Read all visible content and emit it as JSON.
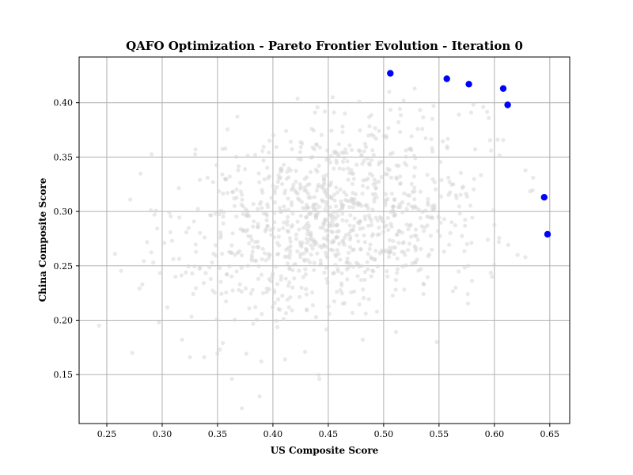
{
  "chart_data": {
    "type": "scatter",
    "title": "QAFO Optimization - Pareto Frontier Evolution - Iteration 0",
    "xlabel": "US Composite Score",
    "ylabel": "China Composite Score",
    "xlim": [
      0.225,
      0.668
    ],
    "ylim": [
      0.105,
      0.442
    ],
    "x_ticks": [
      0.25,
      0.3,
      0.35,
      0.4,
      0.45,
      0.5,
      0.55,
      0.6,
      0.65
    ],
    "x_tick_labels": [
      "0.25",
      "0.30",
      "0.35",
      "0.40",
      "0.45",
      "0.50",
      "0.55",
      "0.60",
      "0.65"
    ],
    "y_ticks": [
      0.15,
      0.2,
      0.25,
      0.3,
      0.35,
      0.4
    ],
    "y_tick_labels": [
      "0.15",
      "0.20",
      "0.25",
      "0.30",
      "0.35",
      "0.40"
    ],
    "grid": true,
    "colors": {
      "population": "#d3d3d3",
      "pareto": "#0000ff"
    },
    "population_cloud": {
      "count": 1000,
      "x_mean": 0.455,
      "x_std": 0.068,
      "y_mean": 0.295,
      "y_std": 0.045,
      "correlation": 0.25
    },
    "population_points": [
      [
        0.243,
        0.195
      ],
      [
        0.273,
        0.17
      ],
      [
        0.282,
        0.233
      ],
      [
        0.293,
        0.297
      ],
      [
        0.297,
        0.198
      ],
      [
        0.318,
        0.182
      ],
      [
        0.325,
        0.166
      ],
      [
        0.338,
        0.166
      ],
      [
        0.352,
        0.173
      ],
      [
        0.363,
        0.146
      ],
      [
        0.372,
        0.119
      ],
      [
        0.388,
        0.13
      ],
      [
        0.411,
        0.164
      ],
      [
        0.429,
        0.171
      ],
      [
        0.442,
        0.146
      ],
      [
        0.451,
        0.206
      ],
      [
        0.462,
        0.232
      ],
      [
        0.548,
        0.18
      ],
      [
        0.565,
        0.23
      ],
      [
        0.576,
        0.224
      ],
      [
        0.598,
        0.24
      ],
      [
        0.604,
        0.272
      ],
      [
        0.621,
        0.26
      ],
      [
        0.628,
        0.258
      ],
      [
        0.635,
        0.331
      ],
      [
        0.603,
        0.366
      ],
      [
        0.597,
        0.356
      ],
      [
        0.579,
        0.391
      ],
      [
        0.568,
        0.389
      ],
      [
        0.545,
        0.397
      ],
      [
        0.528,
        0.413
      ],
      [
        0.518,
        0.402
      ],
      [
        0.505,
        0.41
      ],
      [
        0.478,
        0.401
      ],
      [
        0.465,
        0.39
      ],
      [
        0.438,
        0.391
      ],
      [
        0.435,
        0.376
      ],
      [
        0.412,
        0.374
      ],
      [
        0.397,
        0.365
      ],
      [
        0.384,
        0.352
      ],
      [
        0.361,
        0.332
      ],
      [
        0.346,
        0.327
      ],
      [
        0.334,
        0.329
      ],
      [
        0.309,
        0.273
      ],
      [
        0.312,
        0.24
      ],
      [
        0.327,
        0.243
      ],
      [
        0.352,
        0.248
      ],
      [
        0.377,
        0.283
      ],
      [
        0.398,
        0.236
      ],
      [
        0.413,
        0.291
      ],
      [
        0.453,
        0.312
      ],
      [
        0.468,
        0.329
      ],
      [
        0.491,
        0.352
      ],
      [
        0.512,
        0.33
      ],
      [
        0.521,
        0.288
      ],
      [
        0.544,
        0.294
      ]
    ],
    "series": [
      {
        "role": "pareto-frontier",
        "x": [
          0.506,
          0.557,
          0.577,
          0.608,
          0.612,
          0.645,
          0.648
        ],
        "y": [
          0.427,
          0.422,
          0.417,
          0.413,
          0.398,
          0.313,
          0.279
        ]
      }
    ]
  }
}
